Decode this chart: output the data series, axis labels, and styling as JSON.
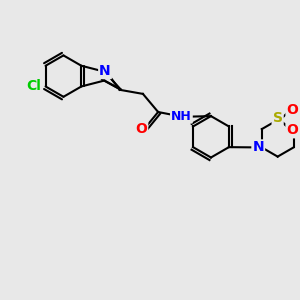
{
  "bg_color": "#e8e8e8",
  "bond_color": "#000000",
  "bond_width": 1.5,
  "atom_colors": {
    "N": "#0000ff",
    "O": "#ff0000",
    "S": "#cccc00",
    "Cl": "#00cc00",
    "H": "#4a9090",
    "C": "#000000"
  },
  "font_size": 9,
  "title": ""
}
